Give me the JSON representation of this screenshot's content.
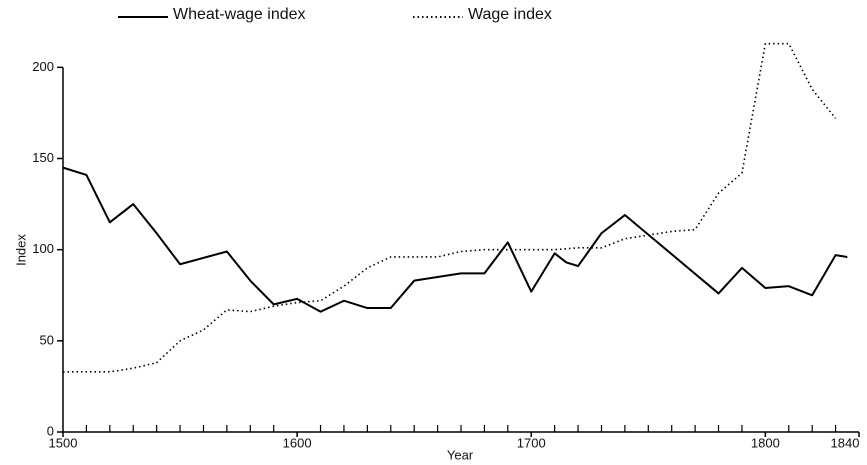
{
  "chart_data": {
    "type": "line",
    "xlabel": "Year",
    "ylabel": "Index",
    "xlim": [
      1500,
      1840
    ],
    "ylim": [
      0,
      215
    ],
    "xticks": [
      1500,
      1600,
      1700,
      1800,
      1840
    ],
    "xminorticks": [
      1510,
      1520,
      1530,
      1540,
      1550,
      1560,
      1570,
      1580,
      1590,
      1610,
      1620,
      1630,
      1640,
      1650,
      1660,
      1670,
      1680,
      1690,
      1710,
      1720,
      1730,
      1740,
      1750,
      1760,
      1770,
      1780,
      1790,
      1810,
      1820,
      1830
    ],
    "yticks": [
      0,
      50,
      100,
      150,
      200
    ],
    "legend": "top",
    "series": [
      {
        "name": "Wheat-wage index",
        "color": "#000000",
        "style": "solid",
        "x": [
          1500,
          1510,
          1520,
          1530,
          1540,
          1550,
          1570,
          1580,
          1590,
          1600,
          1610,
          1620,
          1630,
          1640,
          1650,
          1660,
          1670,
          1680,
          1690,
          1700,
          1710,
          1715,
          1720,
          1730,
          1740,
          1780,
          1790,
          1800,
          1810,
          1820,
          1830,
          1835
        ],
        "values": [
          145,
          141,
          115,
          125,
          109,
          92,
          99,
          83,
          70,
          73,
          66,
          72,
          68,
          68,
          83,
          85,
          87,
          87,
          104,
          77,
          98,
          93,
          91,
          109,
          119,
          76,
          90,
          79,
          80,
          75,
          97,
          96
        ]
      },
      {
        "name": "Wage index",
        "color": "#000000",
        "style": "dotted",
        "x": [
          1500,
          1510,
          1520,
          1530,
          1540,
          1550,
          1560,
          1570,
          1580,
          1590,
          1600,
          1610,
          1620,
          1630,
          1640,
          1650,
          1660,
          1670,
          1680,
          1690,
          1700,
          1710,
          1720,
          1730,
          1740,
          1750,
          1760,
          1770,
          1780,
          1790,
          1800,
          1810,
          1820,
          1830
        ],
        "values": [
          33,
          33,
          33,
          35,
          38,
          50,
          56,
          67,
          66,
          69,
          71,
          72,
          80,
          90,
          96,
          96,
          96,
          99,
          100,
          100,
          100,
          100,
          101,
          101,
          106,
          108,
          110,
          111,
          131,
          142,
          213,
          213,
          188,
          172
        ]
      }
    ]
  }
}
